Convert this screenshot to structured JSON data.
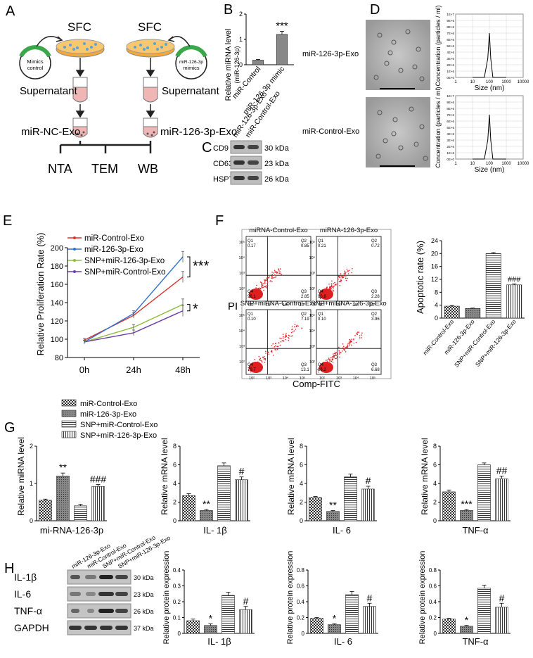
{
  "panels": {
    "A": {
      "letter": "A",
      "sfc_left": "SFC",
      "sfc_right": "SFC",
      "mimics_control": [
        "Mimics",
        "control"
      ],
      "mir_mimics": [
        "miR-126-3p",
        "mimics"
      ],
      "supernatant_left": "Supernatant",
      "supernatant_right": "Supernatant",
      "exo_left": "miR-NC-Exo",
      "exo_right": "miR-126-3p-Exo",
      "nta": "NTA",
      "tem": "TEM",
      "wb": "WB"
    },
    "B": {
      "letter": "B",
      "ylabel": [
        "Relative miRNA level",
        "(miR-126-3p)"
      ],
      "yticks": [
        "0",
        "1",
        "2"
      ],
      "sig": "***",
      "categories": [
        "miR-Control",
        "miR-126-3p mimic"
      ]
    },
    "C": {
      "letter": "C",
      "lanes": [
        "miR-126-3p-Exo",
        "miR-Control-Exo"
      ],
      "rows": [
        {
          "name": "CD9",
          "size": "30 kDa"
        },
        {
          "name": "CD63",
          "size": "23 kDa"
        },
        {
          "name": "HSP70",
          "size": "26 kDa"
        }
      ]
    },
    "D": {
      "letter": "D",
      "row_labels": [
        "miR-126-3p-Exo",
        "miR-Control-Exo"
      ],
      "ylabel": "Concentration (particles / ml)",
      "xlabel": "Size (nm)",
      "yticks": [
        "0E+0",
        "1E+6",
        "2E+6",
        "3E+6",
        "4E+6",
        "5E+6",
        "6E+6",
        "7E+6",
        "8E+6",
        "9E+6",
        "1E+7"
      ],
      "xticks": [
        "1",
        "10",
        "100",
        "1000",
        "10000"
      ]
    },
    "E": {
      "letter": "E",
      "ylabel": "Relative Proliferation Rate (%)",
      "legend": [
        "miR-Control-Exo",
        "miR-126-3p-Exo",
        "SNP+miR-126-3p-Exo",
        "SNP+miR-Control-Exo"
      ],
      "sig1": "***",
      "sig2": "*"
    },
    "F": {
      "letter": "F",
      "quadrant_titles": [
        "miRNA-Control-Exo",
        "miRNA-126-3p-Exo",
        "SNP+miRNA-Control-Exo",
        "SNP+miRNA-126-3p-Exo"
      ],
      "pi": "PI",
      "xlabel": "Comp-FITC",
      "quads": [
        {
          "q1": "Q1\n0.17",
          "q2": "Q2\n0.85",
          "q3": "Q3\n2.85",
          "q4": "Q4\n96.1"
        },
        {
          "q1": "Q1\n0.21",
          "q2": "Q2\n0.72",
          "q3": "Q3\n2.28",
          "q4": "Q4\n96.8"
        },
        {
          "q1": "Q1\n0.10",
          "q2": "Q2\n7.19",
          "q3": "Q3\n13.1",
          "q4": "Q4\n79.7"
        },
        {
          "q1": "Q1\n0.10",
          "q2": "Q2\n3.96",
          "q3": "Q3\n6.68",
          "q4": "Q4\n89.2"
        }
      ],
      "bar_ylabel": "Apoptotic rate (%)",
      "bar_sig": "###",
      "bar_categories": [
        "miR-Control-Exo",
        "miR-126-3p-Exo",
        "SNP+miR-Control-Exo",
        "SNP+miR-126-3p-Exo"
      ]
    },
    "G": {
      "letter": "G",
      "legend": [
        "miR-Control-Exo",
        "miR-126-3p-Exo",
        "SNP+miR-Control-Exo",
        "SNP+miR-126-3p-Exo"
      ],
      "charts": [
        {
          "ylabel": "Relative miRNA level",
          "xlabel": "mi-RNA-126-3p",
          "sigs": [
            "",
            "**",
            "",
            "###"
          ]
        },
        {
          "ylabel": "Relative mRNA level",
          "xlabel": "IL- 1β",
          "sigs": [
            "",
            "**",
            "",
            "#"
          ]
        },
        {
          "ylabel": "Relative mRNA level",
          "xlabel": "IL- 6",
          "sigs": [
            "",
            "**",
            "",
            "#"
          ]
        },
        {
          "ylabel": "Relative mRNA level",
          "xlabel": "TNF-α",
          "sigs": [
            "",
            "***",
            "",
            "##"
          ]
        }
      ]
    },
    "H": {
      "letter": "H",
      "lanes": [
        "miR-126-3p-Exo",
        "miR-Control-Exo",
        "SNP+miR-Control-Exo",
        "SNP+miR-126-3p-Exo"
      ],
      "rows": [
        {
          "name": "IL-1β",
          "size": "30 kDa"
        },
        {
          "name": "IL-6",
          "size": "23 kDa"
        },
        {
          "name": "TNF-α",
          "size": "26 kDa"
        },
        {
          "name": "GAPDH",
          "size": "37 kDa"
        }
      ],
      "charts": [
        {
          "ylabel": "Relative protein expression",
          "xlabel": "IL- 1β",
          "sigs": [
            "",
            "*",
            "",
            "#"
          ]
        },
        {
          "ylabel": "Relative protein expression",
          "xlabel": "IL- 6",
          "sigs": [
            "",
            "*",
            "",
            "#"
          ]
        },
        {
          "ylabel": "Relative protein expression",
          "xlabel": "TNF-α",
          "sigs": [
            "",
            "*",
            "",
            "#"
          ]
        }
      ]
    }
  },
  "chart_data": [
    {
      "type": "bar",
      "panel": "B",
      "categories": [
        "miR-Control",
        "miR-126-3p mimic"
      ],
      "values": [
        0.18,
        1.2
      ],
      "errors": [
        0.03,
        0.12
      ],
      "ylabel": "Relative miRNA level (miR-126-3p)",
      "ylim": [
        0,
        2
      ]
    },
    {
      "type": "line",
      "panel": "D-top",
      "x": [
        10,
        50,
        80,
        100,
        120,
        160,
        300,
        1000
      ],
      "y": [
        0,
        0,
        3000000,
        7000000,
        3000000,
        0,
        0,
        0
      ],
      "xlabel": "Size (nm)",
      "ylabel": "Concentration (particles / ml)",
      "xscale": "log",
      "ylim": [
        0,
        10000000
      ],
      "xlim": [
        1,
        10000
      ],
      "grid": true
    },
    {
      "type": "line",
      "panel": "D-bottom",
      "x": [
        10,
        50,
        80,
        100,
        120,
        160,
        300,
        1000
      ],
      "y": [
        0,
        0,
        3000000,
        7000000,
        3000000,
        0,
        0,
        0
      ],
      "xlabel": "Size (nm)",
      "ylabel": "Concentration (particles / ml)",
      "xscale": "log",
      "ylim": [
        0,
        10000000
      ],
      "xlim": [
        1,
        10000
      ],
      "grid": true
    },
    {
      "type": "line",
      "panel": "E",
      "categories": [
        "0h",
        "24h",
        "48h"
      ],
      "series": [
        {
          "name": "miR-Control-Exo",
          "values": [
            99,
            126,
            168
          ],
          "color": "#d9342b"
        },
        {
          "name": "miR-126-3p-Exo",
          "values": [
            97,
            128,
            190
          ],
          "color": "#2f6fcf"
        },
        {
          "name": "SNP+miR-126-3p-Exo",
          "values": [
            97,
            113,
            138
          ],
          "color": "#8dbd3b"
        },
        {
          "name": "SNP+miR-Control-Exo",
          "values": [
            97,
            107,
            131
          ],
          "color": "#6b3fa8"
        }
      ],
      "errors": [
        2,
        3,
        6
      ],
      "ylabel": "Relative Proliferation Rate (%)",
      "ylim": [
        80,
        200
      ],
      "yticks": [
        80,
        100,
        120,
        140,
        160,
        180,
        200
      ],
      "legend": "top-left"
    },
    {
      "type": "bar",
      "panel": "F",
      "categories": [
        "miR-Control-Exo",
        "miR-126-3p-Exo",
        "SNP+miR-Control-Exo",
        "SNP+miR-126-3p-Exo"
      ],
      "values": [
        3.7,
        3.0,
        20.0,
        10.3
      ],
      "errors": [
        0.2,
        0.1,
        0.3,
        0.3
      ],
      "ylabel": "Apoptotic rate (%)",
      "ylim": [
        0,
        24
      ],
      "yticks": [
        0,
        4,
        8,
        12,
        16,
        20,
        24
      ]
    },
    {
      "type": "bar",
      "panel": "G1",
      "categories": [
        "miR-Control-Exo",
        "miR-126-3p-Exo",
        "SNP+miR-Control-Exo",
        "SNP+miR-126-3p-Exo"
      ],
      "values": [
        0.55,
        1.2,
        0.4,
        0.92
      ],
      "errors": [
        0.03,
        0.08,
        0.04,
        0.05
      ],
      "xlabel": "mi-RNA-126-3p",
      "ylabel": "Relative miRNA level",
      "ylim": [
        0,
        2
      ],
      "yticks": [
        0,
        1,
        2
      ]
    },
    {
      "type": "bar",
      "panel": "G2",
      "categories": [
        "miR-Control-Exo",
        "miR-126-3p-Exo",
        "SNP+miR-Control-Exo",
        "SNP+miR-126-3p-Exo"
      ],
      "values": [
        2.7,
        1.1,
        5.9,
        4.4
      ],
      "errors": [
        0.2,
        0.1,
        0.3,
        0.3
      ],
      "xlabel": "IL- 1β",
      "ylabel": "Relative mRNA level",
      "ylim": [
        0,
        8
      ],
      "yticks": [
        0,
        2,
        4,
        6,
        8
      ]
    },
    {
      "type": "bar",
      "panel": "G3",
      "categories": [
        "miR-Control-Exo",
        "miR-126-3p-Exo",
        "SNP+miR-Control-Exo",
        "SNP+miR-126-3p-Exo"
      ],
      "values": [
        2.5,
        1.0,
        4.7,
        3.4
      ],
      "errors": [
        0.1,
        0.1,
        0.3,
        0.3
      ],
      "xlabel": "IL- 6",
      "ylabel": "Relative mRNA level",
      "ylim": [
        0,
        8
      ],
      "yticks": [
        0,
        2,
        4,
        6,
        8
      ]
    },
    {
      "type": "bar",
      "panel": "G4",
      "categories": [
        "miR-Control-Exo",
        "miR-126-3p-Exo",
        "SNP+miR-Control-Exo",
        "SNP+miR-126-3p-Exo"
      ],
      "values": [
        3.1,
        1.1,
        6.0,
        4.5
      ],
      "errors": [
        0.2,
        0.1,
        0.2,
        0.3
      ],
      "xlabel": "TNF-α",
      "ylabel": "Relative mRNA level",
      "ylim": [
        0,
        8
      ],
      "yticks": [
        0,
        2,
        4,
        6,
        8
      ]
    },
    {
      "type": "bar",
      "panel": "H1",
      "categories": [
        "miR-Control-Exo",
        "miR-126-3p-Exo",
        "SNP+miR-Control-Exo",
        "SNP+miR-126-3p-Exo"
      ],
      "values": [
        0.08,
        0.05,
        0.24,
        0.15
      ],
      "errors": [
        0.01,
        0.01,
        0.02,
        0.02
      ],
      "xlabel": "IL- 1β",
      "ylabel": "Relative protein expression",
      "ylim": [
        0,
        0.4
      ],
      "yticks": [
        0,
        0.1,
        0.2,
        0.3,
        0.4
      ]
    },
    {
      "type": "bar",
      "panel": "H2",
      "categories": [
        "miR-Control-Exo",
        "miR-126-3p-Exo",
        "SNP+miR-Control-Exo",
        "SNP+miR-126-3p-Exo"
      ],
      "values": [
        0.19,
        0.11,
        0.49,
        0.34
      ],
      "errors": [
        0.01,
        0.01,
        0.04,
        0.04
      ],
      "xlabel": "IL- 6",
      "ylabel": "Relative protein expression",
      "ylim": [
        0,
        0.8
      ],
      "yticks": [
        0,
        0.2,
        0.4,
        0.6,
        0.8
      ]
    },
    {
      "type": "bar",
      "panel": "H3",
      "categories": [
        "miR-Control-Exo",
        "miR-126-3p-Exo",
        "SNP+miR-Control-Exo",
        "SNP+miR-126-3p-Exo"
      ],
      "values": [
        0.18,
        0.09,
        0.57,
        0.33
      ],
      "errors": [
        0.01,
        0.01,
        0.04,
        0.05
      ],
      "xlabel": "TNF-α",
      "ylabel": "Relative protein expression",
      "ylim": [
        0,
        0.8
      ],
      "yticks": [
        0,
        0.2,
        0.4,
        0.6,
        0.8
      ]
    }
  ]
}
